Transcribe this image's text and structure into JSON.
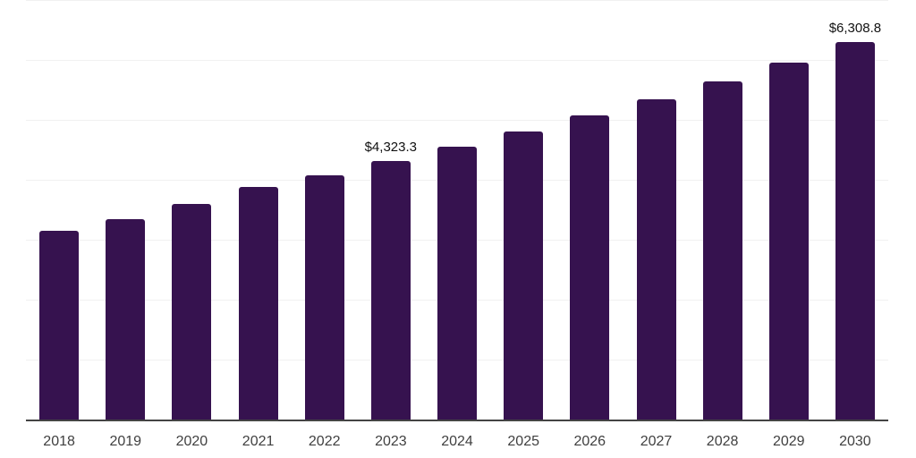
{
  "chart_data": {
    "type": "bar",
    "title": "",
    "xlabel": "",
    "ylabel": "",
    "categories": [
      "2018",
      "2019",
      "2020",
      "2021",
      "2022",
      "2023",
      "2024",
      "2025",
      "2026",
      "2027",
      "2028",
      "2029",
      "2030"
    ],
    "values": [
      3170,
      3357,
      3615,
      3890,
      4096,
      4323.3,
      4563.1,
      4816.2,
      5083.3,
      5365.3,
      5662.9,
      5977.1,
      6308.8
    ],
    "value_labels": {
      "2023": "$4,323.3",
      "2030": "$6,308.8"
    },
    "ylim": [
      0,
      7000
    ],
    "grid_step": 1000,
    "grid": "horizontal",
    "legend": "none",
    "colors": {
      "bar": "#36124f",
      "gridline": "#f1f1f1",
      "axis_line": "#444444",
      "tick_label": "#404040",
      "value_label": "#111111",
      "background": "#ffffff"
    }
  }
}
